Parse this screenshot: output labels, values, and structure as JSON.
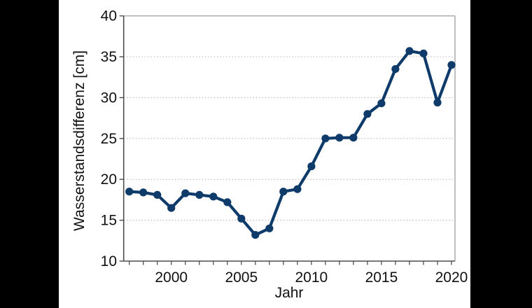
{
  "chart_data": {
    "type": "line",
    "title": "",
    "xlabel": "Jahr",
    "ylabel": "Wasserstandsdifferenz [cm]",
    "x": [
      1997,
      1998,
      1999,
      2000,
      2001,
      2002,
      2003,
      2004,
      2005,
      2006,
      2007,
      2008,
      2009,
      2010,
      2011,
      2012,
      2013,
      2014,
      2015,
      2016,
      2017,
      2018,
      2019,
      2020
    ],
    "series": [
      {
        "name": "Wasserstandsdifferenz",
        "values": [
          18.5,
          18.4,
          18.1,
          16.5,
          18.3,
          18.1,
          17.9,
          17.2,
          15.2,
          13.2,
          14.0,
          18.5,
          18.8,
          21.6,
          25.0,
          25.1,
          25.1,
          28.0,
          29.3,
          33.5,
          35.7,
          35.4,
          29.4,
          34.0
        ]
      }
    ],
    "xlim": [
      1996.6,
      2020.25
    ],
    "ylim": [
      10,
      40
    ],
    "yticks": [
      10,
      15,
      20,
      25,
      30,
      35,
      40
    ],
    "xticks_major": [
      2000,
      2005,
      2010,
      2015,
      2020
    ],
    "xticks_minor_step": 1,
    "grid": "horizontal-dotted",
    "legend": "none",
    "marker": "circle",
    "colors": {
      "line": "#0e3b6a",
      "grid": "#cdb8b8",
      "axis_dark": "#4d4d4d",
      "axis_light": "#a6a6a6",
      "text": "#111111",
      "background": "#ffffff",
      "side_bars": "#000000"
    }
  }
}
